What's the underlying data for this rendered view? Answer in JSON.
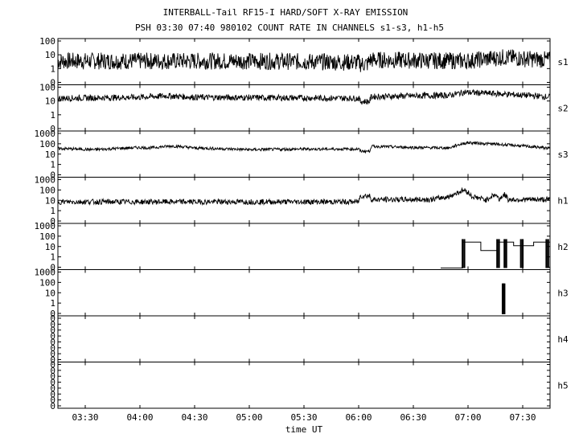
{
  "chart_data": {
    "type": "line",
    "title": "INTERBALL-Tail RF15-I HARD/SOFT X-RAY EMISSION",
    "subtitle": "PSH 03:30 07:40 980102  COUNT RATE IN CHANNELS s1-s3, h1-h5",
    "xlabel": "time UT",
    "x_ticks": [
      "03:30",
      "04:00",
      "04:30",
      "05:00",
      "05:30",
      "06:00",
      "06:30",
      "07:00",
      "07:30"
    ],
    "x_tick_minutes": [
      210,
      240,
      270,
      300,
      330,
      360,
      390,
      420,
      450
    ],
    "xlim_minutes": [
      195,
      465
    ],
    "y_scale": "log",
    "panels": [
      {
        "name": "s1",
        "ytick_labels": [
          "100",
          "10",
          "1",
          "0"
        ],
        "ylim": [
          0.3,
          100
        ],
        "baseline": 6,
        "noise": 0.5,
        "points": [
          [
            195,
            6
          ],
          [
            300,
            6
          ],
          [
            360,
            5
          ],
          [
            361,
            4
          ],
          [
            365,
            4
          ],
          [
            366,
            7
          ],
          [
            420,
            6
          ],
          [
            440,
            10
          ],
          [
            452,
            8
          ],
          [
            465,
            7
          ]
        ]
      },
      {
        "name": "s2",
        "ytick_labels": [
          "100",
          "10",
          "1",
          "0"
        ],
        "ylim": [
          0.3,
          100
        ],
        "baseline": 20,
        "noise": 0.18,
        "points": [
          [
            195,
            20
          ],
          [
            240,
            23
          ],
          [
            255,
            28
          ],
          [
            270,
            23
          ],
          [
            300,
            22
          ],
          [
            360,
            20
          ],
          [
            361,
            13
          ],
          [
            366,
            13
          ],
          [
            367,
            25
          ],
          [
            410,
            30
          ],
          [
            418,
            45
          ],
          [
            440,
            35
          ],
          [
            465,
            24
          ]
        ]
      },
      {
        "name": "s3",
        "ytick_labels": [
          "1000",
          "100",
          "10",
          "1",
          "0"
        ],
        "ylim": [
          0.3,
          1000
        ],
        "baseline": 50,
        "noise": 0.12,
        "points": [
          [
            195,
            50
          ],
          [
            215,
            40
          ],
          [
            240,
            60
          ],
          [
            245,
            55
          ],
          [
            258,
            80
          ],
          [
            270,
            55
          ],
          [
            300,
            40
          ],
          [
            330,
            45
          ],
          [
            360,
            45
          ],
          [
            361,
            30
          ],
          [
            366,
            30
          ],
          [
            367,
            75
          ],
          [
            390,
            60
          ],
          [
            410,
            55
          ],
          [
            420,
            150
          ],
          [
            440,
            100
          ],
          [
            465,
            50
          ]
        ]
      },
      {
        "name": "h1",
        "ytick_labels": [
          "1000",
          "100",
          "10",
          "1",
          "0"
        ],
        "ylim": [
          0.3,
          1000
        ],
        "baseline": 13,
        "noise": 0.22,
        "points": [
          [
            195,
            13
          ],
          [
            360,
            13
          ],
          [
            361,
            40
          ],
          [
            366,
            40
          ],
          [
            367,
            20
          ],
          [
            400,
            20
          ],
          [
            410,
            35
          ],
          [
            415,
            80
          ],
          [
            418,
            120
          ],
          [
            422,
            35
          ],
          [
            430,
            18
          ],
          [
            435,
            50
          ],
          [
            437,
            20
          ],
          [
            440,
            50
          ],
          [
            442,
            20
          ],
          [
            465,
            20
          ]
        ]
      },
      {
        "name": "h2",
        "ytick_labels": [
          "1000",
          "100",
          "10",
          "1",
          "0"
        ],
        "ylim": [
          0.3,
          1000
        ],
        "steps": [
          [
            405,
            0.3
          ],
          [
            417,
            0.3
          ],
          [
            417,
            40
          ],
          [
            427,
            40
          ],
          [
            427,
            8
          ],
          [
            436,
            8
          ],
          [
            436,
            40
          ],
          [
            445,
            40
          ],
          [
            445,
            20
          ],
          [
            456,
            20
          ],
          [
            456,
            40
          ],
          [
            465,
            40
          ]
        ],
        "spikes": [
          [
            417,
            0.3,
            70
          ],
          [
            418,
            0.3,
            70
          ],
          [
            436,
            0.3,
            70
          ],
          [
            437,
            0.3,
            70
          ],
          [
            440,
            0.3,
            70
          ],
          [
            441,
            0.3,
            70
          ],
          [
            449,
            0.3,
            70
          ],
          [
            450,
            0.3,
            70
          ],
          [
            463,
            0.3,
            70
          ],
          [
            464,
            0.3,
            70
          ]
        ]
      },
      {
        "name": "h3",
        "ytick_labels": [
          "1000",
          "100",
          "10",
          "1",
          "0"
        ],
        "ylim": [
          0.3,
          1000
        ],
        "spikes": [
          [
            439,
            0.3,
            100
          ],
          [
            439.5,
            0.3,
            100
          ],
          [
            440,
            0.3,
            100
          ]
        ]
      },
      {
        "name": "h4",
        "ytick_labels": [
          "0",
          "0",
          "0",
          "0",
          "0",
          "0",
          "0",
          "0"
        ]
      },
      {
        "name": "h5",
        "ytick_labels": [
          "0",
          "0",
          "0",
          "0",
          "0",
          "0",
          "0",
          "0"
        ]
      }
    ]
  }
}
